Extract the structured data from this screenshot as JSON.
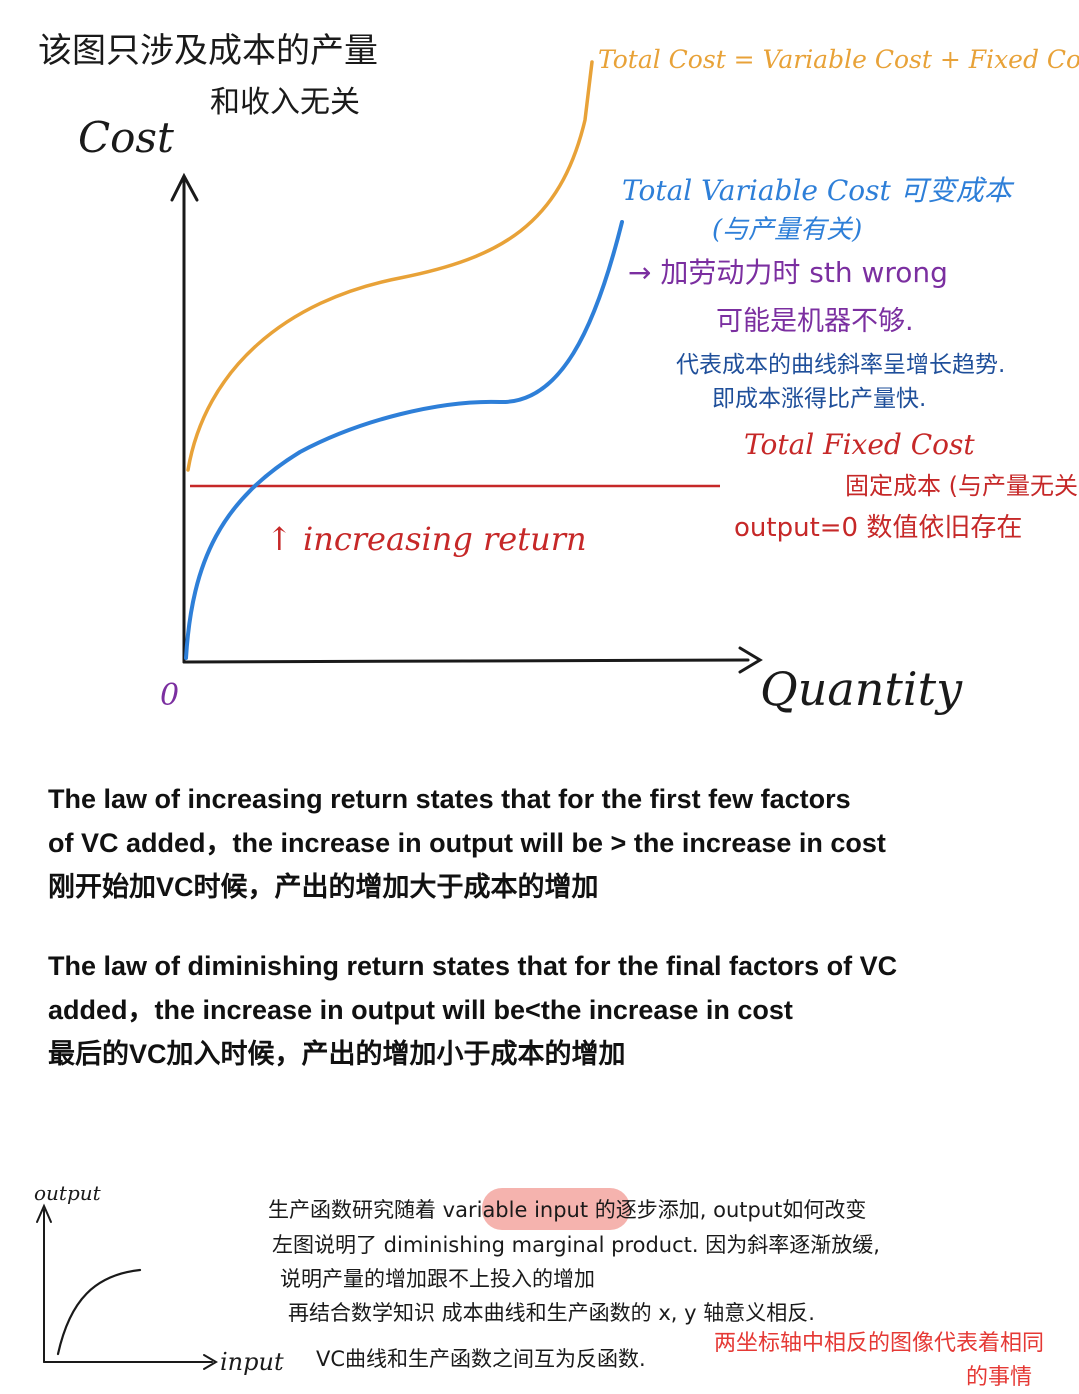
{
  "colors": {
    "total_cost": "#E8A238",
    "variable_cost": "#2E7FD8",
    "fixed_cost": "#C62828",
    "purple": "#7B2FA0",
    "ink": "#1a1a1a",
    "highlight": "#F3A6A0",
    "navy": "#1F4F9A"
  },
  "graph": {
    "note_cn": [
      "该图只涉及成本的产量",
      "和收入无关"
    ],
    "y_axis_label": "Cost",
    "x_axis_label": "Quantity",
    "origin_label": "0",
    "tc_label": "Total Cost = Variable Cost + Fixed Cost",
    "tvc_label": "Total Variable Cost 可变成本",
    "tvc_sub": "(与产量有关)",
    "purple_note": [
      "→ 加劳动力时 sth wrong",
      "可能是机器不够."
    ],
    "blue_note": [
      "代表成本的曲线斜率呈增长趋势.",
      "即成本涨得比产量快."
    ],
    "tfc_label": "Total Fixed Cost",
    "tfc_sub": "固定成本 (与产量无关)",
    "tfc_note": "output=0 数值依旧存在",
    "increasing_label": "↑ increasing return"
  },
  "text": {
    "increasing": [
      "The law of increasing return states that  for the first few factors",
      "of VC added，the increase in output will be > the increase in cost",
      "刚开始加VC时候，产出的增加大于成本的增加"
    ],
    "diminishing": [
      "The law of diminishing return states that for the final factors of VC",
      "added，the increase in output will be<the increase in cost",
      "最后的VC加入时候，产出的增加小于成本的增加"
    ]
  },
  "bottom": {
    "y_label": "output",
    "x_label": "input",
    "notes": [
      "生产函数研究随着 variable input 的逐步添加, output如何改变",
      "左图说明了 diminishing marginal product. 因为斜率逐渐放缓,",
      "说明产量的增加跟不上投入的增加",
      "再结合数学知识  成本曲线和生产函数的 x, y 轴意义相反.",
      "VC曲线和生产函数之间互为反函数."
    ],
    "highlight_word": "variable input",
    "red_note": [
      "两坐标轴中相反的图像代表着相同",
      "的事情"
    ]
  }
}
